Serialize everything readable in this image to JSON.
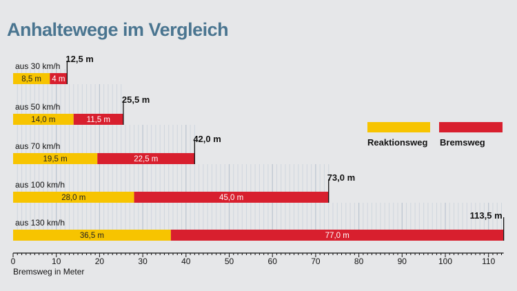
{
  "title": "Anhaltewege im Vergleich",
  "chart_data": {
    "type": "bar",
    "orientation": "horizontal",
    "stacked": true,
    "title": "Anhaltewege im Vergleich",
    "xlabel": "Bremsweg in Meter",
    "xlim": [
      0,
      113.5
    ],
    "xticks": [
      0,
      10,
      20,
      30,
      40,
      50,
      60,
      70,
      80,
      90,
      100,
      110
    ],
    "categories": [
      "aus 30 km/h",
      "aus 50 km/h",
      "aus 70 km/h",
      "aus 100 km/h",
      "aus 130 km/h"
    ],
    "series": [
      {
        "name": "Reaktionsweg",
        "color": "#f7c400",
        "values": [
          8.5,
          14.0,
          19.5,
          28.0,
          36.5
        ],
        "labels": [
          "8,5 m",
          "14,0 m",
          "19,5 m",
          "28,0 m",
          "36,5 m"
        ]
      },
      {
        "name": "Bremsweg",
        "color": "#d81f2e",
        "values": [
          4.0,
          11.5,
          22.5,
          45.0,
          77.0
        ],
        "labels": [
          "4 m",
          "11,5 m",
          "22,5 m",
          "45,0 m",
          "77,0 m"
        ]
      }
    ],
    "totals": [
      12.5,
      25.5,
      42.0,
      73.0,
      113.5
    ],
    "total_labels": [
      "12,5 m",
      "25,5 m",
      "42,0 m",
      "73,0 m",
      "113,5 m"
    ],
    "grid": "vertical lines at each meter",
    "legend_position": "right"
  }
}
